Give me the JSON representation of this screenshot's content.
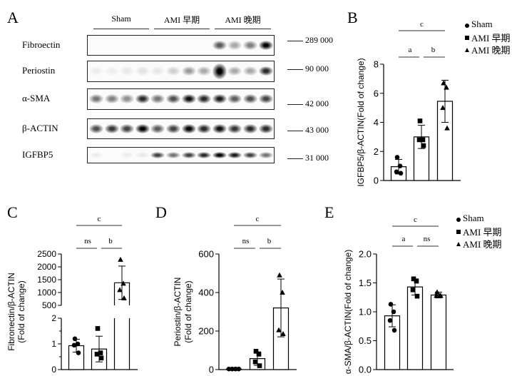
{
  "panels": {
    "A": "A",
    "B": "B",
    "C": "C",
    "D": "D",
    "E": "E"
  },
  "blot": {
    "groups": [
      "Sham",
      "AMI 早期",
      "AMI 晚期"
    ],
    "rows": [
      {
        "label": "Fibroectin",
        "mw": "289 000",
        "intensity": [
          0,
          0,
          0,
          0,
          0,
          0,
          0,
          0,
          0.6,
          0.3,
          0.45,
          0.95
        ]
      },
      {
        "label": "Periostin",
        "mw": "90 000",
        "intensity": [
          0.03,
          0.03,
          0.05,
          0.08,
          0.05,
          0.15,
          0.35,
          0.3,
          1,
          0.3,
          0.3,
          0.8
        ]
      },
      {
        "label": "α-SMA",
        "mw": "42 000",
        "intensity": [
          0.5,
          0.45,
          0.4,
          0.8,
          0.5,
          0.65,
          0.9,
          0.8,
          0.85,
          0.6,
          0.65,
          0.7
        ]
      },
      {
        "label": "β-ACTIN",
        "mw": "43 000",
        "intensity": [
          0.65,
          0.75,
          0.7,
          0.95,
          0.6,
          0.7,
          0.95,
          0.8,
          0.9,
          0.75,
          0.8,
          0.8
        ]
      },
      {
        "label": "IGFBP5",
        "mw": "31 000",
        "intensity": [
          0.03,
          0.02,
          0.03,
          0.05,
          0.7,
          0.5,
          0.7,
          0.8,
          1,
          0.85,
          0.7,
          0.5
        ]
      }
    ]
  },
  "legend": [
    {
      "marker": "circle",
      "label": "Sham"
    },
    {
      "marker": "square",
      "label": "AMI 早期"
    },
    {
      "marker": "triangle",
      "label": "AMI 晚期"
    }
  ],
  "chart_data": [
    {
      "id": "B",
      "type": "bar",
      "ylabel": "IGFBP5/β-ACTIN(Fold of change)",
      "ylim": [
        0,
        8
      ],
      "yticks": [
        0,
        2,
        4,
        6,
        8
      ],
      "categories": [
        "Sham",
        "AMI 早期",
        "AMI 晚期"
      ],
      "means": [
        0.95,
        3.0,
        5.45
      ],
      "sd": [
        0.5,
        0.8,
        1.45
      ],
      "points": [
        [
          1.6,
          1.0,
          0.6,
          0.5
        ],
        [
          4.1,
          2.8,
          2.8,
          2.4
        ],
        [
          6.7,
          6.4,
          5.0,
          3.6
        ]
      ],
      "significance": {
        "top": "c",
        "left": "a",
        "right": "b"
      }
    },
    {
      "id": "C",
      "type": "bar",
      "ylabel": "Fibronectin/β-ACTIN",
      "ylabel2": "(Fold of change)",
      "ylim": [
        0,
        2500
      ],
      "broken_axis": {
        "lower": [
          0,
          2
        ],
        "upper": [
          500,
          2500
        ]
      },
      "yticks_lower": [
        0,
        1,
        2
      ],
      "yticks_upper": [
        500,
        1000,
        1500,
        2000,
        2500
      ],
      "categories": [
        "Sham",
        "AMI 早期",
        "AMI 晚期"
      ],
      "means": [
        0.93,
        0.8,
        1380
      ],
      "sd": [
        0.25,
        0.5,
        650
      ],
      "points": [
        [
          1.2,
          1.0,
          0.95,
          0.65
        ],
        [
          1.6,
          0.65,
          0.6,
          0.45
        ],
        [
          2280,
          1350,
          1100,
          780
        ]
      ],
      "significance": {
        "top": "c",
        "left": "ns",
        "right": "b"
      }
    },
    {
      "id": "D",
      "type": "bar",
      "ylabel": "Periostin/β-ACTIN",
      "ylabel2": "(Fold of change)",
      "ylim": [
        0,
        600
      ],
      "yticks": [
        0,
        200,
        400,
        600
      ],
      "categories": [
        "Sham",
        "AMI 早期",
        "AMI 晚期"
      ],
      "means": [
        3,
        57,
        320
      ],
      "sd": [
        1,
        35,
        150
      ],
      "points": [
        [
          3,
          3,
          3,
          3
        ],
        [
          95,
          80,
          40,
          20
        ],
        [
          490,
          400,
          205,
          185
        ]
      ],
      "significance": {
        "top": "c",
        "left": "ns",
        "right": "b"
      }
    },
    {
      "id": "E",
      "type": "bar",
      "ylabel": "α-SMA/β-ACTIN(Fold of change)",
      "ylim": [
        0,
        2
      ],
      "yticks": [
        "0.0",
        "0.5",
        "1.0",
        "1.5",
        "2.0"
      ],
      "categories": [
        "Sham",
        "AMI 早期",
        "AMI 晚期"
      ],
      "means": [
        0.93,
        1.43,
        1.29
      ],
      "sd": [
        0.19,
        0.14,
        0.05
      ],
      "points": [
        [
          1.13,
          1.0,
          0.85,
          0.68
        ],
        [
          1.57,
          1.53,
          1.38,
          1.27
        ],
        [
          1.34,
          1.28,
          1.28,
          1.28
        ]
      ],
      "significance": {
        "top": "c",
        "left": "a",
        "right": "ns"
      }
    }
  ]
}
